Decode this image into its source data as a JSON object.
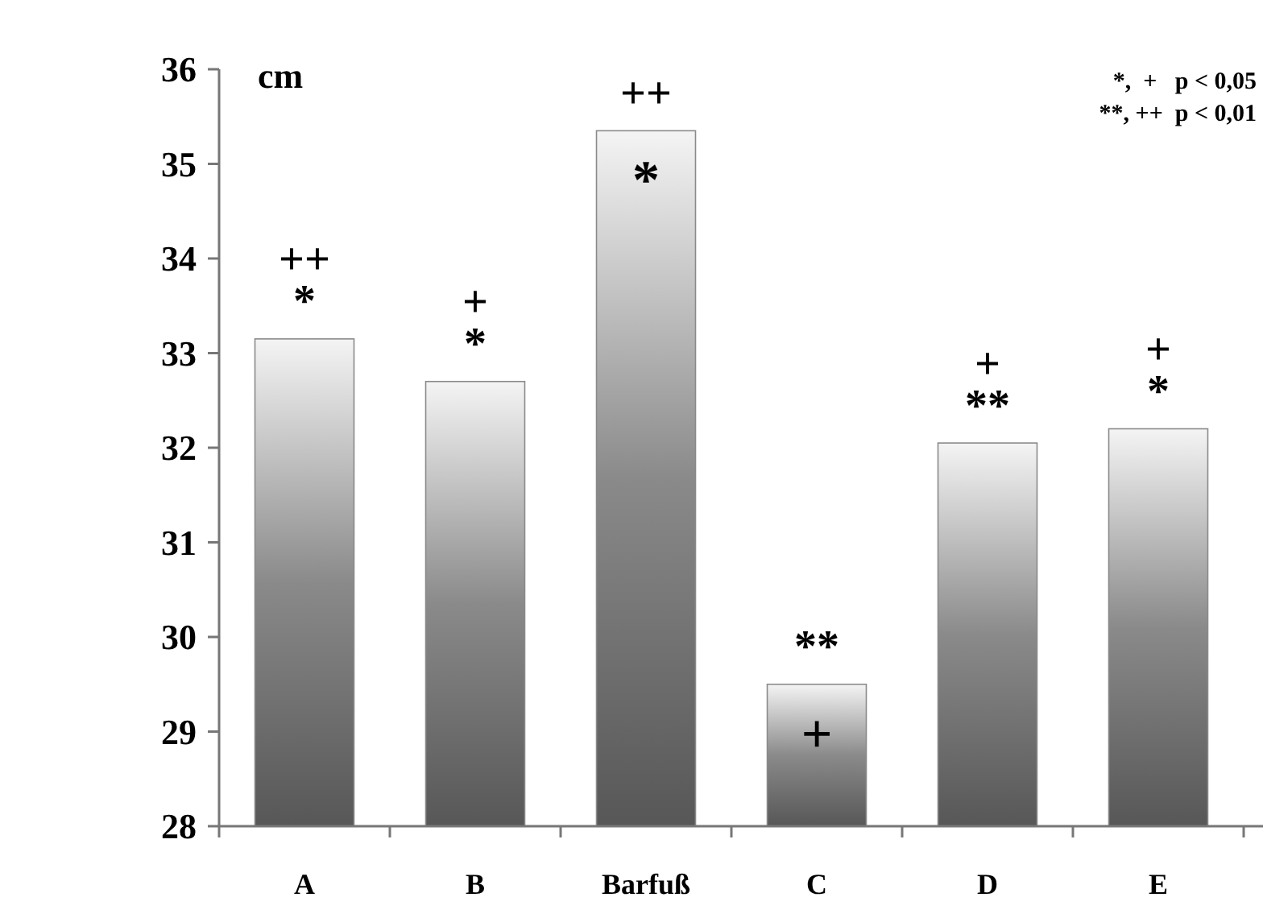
{
  "chart_data": {
    "type": "bar",
    "ylabel": "cm",
    "categories": [
      "A",
      "B",
      "Barfuß",
      "C",
      "D",
      "E"
    ],
    "values": [
      33.15,
      32.7,
      35.35,
      29.5,
      32.05,
      32.2
    ],
    "color": "#8a8a8a",
    "value_labels": [
      null,
      null,
      "*",
      "+",
      null,
      null
    ],
    "ylim": [
      28,
      36
    ],
    "yticks": [
      28,
      29,
      30,
      31,
      32,
      33,
      34,
      35,
      36
    ],
    "grid": false,
    "annotations": [
      {
        "text": "++",
        "x": "A",
        "y": 33.15
      },
      {
        "text": "*",
        "x": "A",
        "y": 33.15
      },
      {
        "text": "+",
        "x": "B",
        "y": 32.7
      },
      {
        "text": "*",
        "x": "B",
        "y": 32.7
      },
      {
        "text": "++",
        "x": "Barfuß",
        "y": 35.35
      },
      {
        "text": "**",
        "x": "C",
        "y": 29.5
      },
      {
        "text": "+",
        "x": "D",
        "y": 32.05
      },
      {
        "text": "**",
        "x": "D",
        "y": 32.05
      },
      {
        "text": "+",
        "x": "E",
        "y": 32.2
      },
      {
        "text": "*",
        "x": "E",
        "y": 32.2
      },
      "*,  +   p < 0,05",
      "**, ++  p < 0,01"
    ]
  }
}
